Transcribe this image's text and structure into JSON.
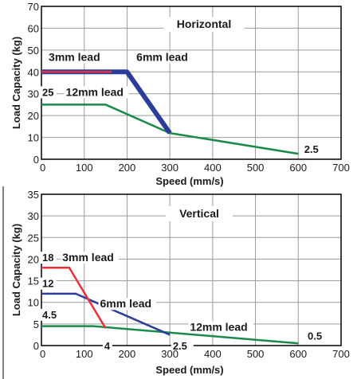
{
  "chart_data": [
    {
      "type": "line",
      "title": "Horizontal",
      "xlabel": "Speed (mm/s)",
      "ylabel": "Load Capacity (kg)",
      "xlim": [
        0,
        700
      ],
      "ylim": [
        0,
        70
      ],
      "xticks": [
        0,
        100,
        200,
        300,
        400,
        500,
        600,
        700
      ],
      "yticks": [
        0,
        10,
        20,
        30,
        40,
        50,
        60,
        70
      ],
      "grid": true,
      "series": [
        {
          "name": "12mm lead",
          "color": "#1a8a4a",
          "width": 2.5,
          "x": [
            0,
            150,
            300,
            600
          ],
          "y": [
            25,
            25,
            12,
            2.5
          ]
        },
        {
          "name": "6mm lead",
          "color": "#2b3d99",
          "width": 6,
          "x": [
            0,
            200,
            300
          ],
          "y": [
            40,
            40,
            12
          ]
        },
        {
          "name": "3mm lead",
          "color": "#e8303a",
          "width": 2.5,
          "x": [
            0,
            165
          ],
          "y": [
            40,
            40
          ]
        }
      ],
      "labels": [
        {
          "text": "3mm lead",
          "x": 15,
          "y": 45,
          "cls": "ann"
        },
        {
          "text": "6mm lead",
          "x": 220,
          "y": 45,
          "cls": "ann"
        },
        {
          "text": "25",
          "x": 0,
          "y": 29,
          "cls": "num"
        },
        {
          "text": "12mm lead",
          "x": 55,
          "y": 29,
          "cls": "ann"
        },
        {
          "text": "2.5",
          "x": 612,
          "y": 3,
          "cls": "num"
        }
      ]
    },
    {
      "type": "line",
      "title": "Vertical",
      "xlabel": "Speed (mm/s)",
      "ylabel": "Load Capacity (kg)",
      "xlim": [
        0,
        700
      ],
      "ylim": [
        0,
        35
      ],
      "xticks": [
        0,
        100,
        200,
        300,
        400,
        500,
        600,
        700
      ],
      "yticks": [
        0,
        5,
        10,
        15,
        20,
        25,
        30,
        35
      ],
      "grid": true,
      "series": [
        {
          "name": "12mm lead",
          "color": "#1a8a4a",
          "width": 2.5,
          "x": [
            0,
            120,
            600
          ],
          "y": [
            4.5,
            4.5,
            0.5
          ]
        },
        {
          "name": "6mm lead",
          "color": "#2b3d99",
          "width": 2.5,
          "x": [
            0,
            80,
            300
          ],
          "y": [
            12,
            12,
            2.5
          ]
        },
        {
          "name": "3mm lead",
          "color": "#e8303a",
          "width": 2.5,
          "x": [
            0,
            65,
            150
          ],
          "y": [
            18,
            18,
            4
          ]
        }
      ],
      "labels": [
        {
          "text": "18",
          "x": 0,
          "y": 19.5,
          "cls": "num"
        },
        {
          "text": "3mm lead",
          "x": 47,
          "y": 19.5,
          "cls": "ann"
        },
        {
          "text": "12",
          "x": 0,
          "y": 13.5,
          "cls": "num"
        },
        {
          "text": "6mm lead",
          "x": 135,
          "y": 8.8,
          "cls": "ann"
        },
        {
          "text": "4.5",
          "x": 0,
          "y": 6.3,
          "cls": "num"
        },
        {
          "text": "4",
          "x": 145,
          "y": -0.9,
          "cls": "num"
        },
        {
          "text": "2.5",
          "x": 305,
          "y": -0.9,
          "cls": "num"
        },
        {
          "text": "12mm lead",
          "x": 345,
          "y": 3.4,
          "cls": "ann"
        },
        {
          "text": "0.5",
          "x": 620,
          "y": 1.4,
          "cls": "num"
        }
      ]
    }
  ]
}
